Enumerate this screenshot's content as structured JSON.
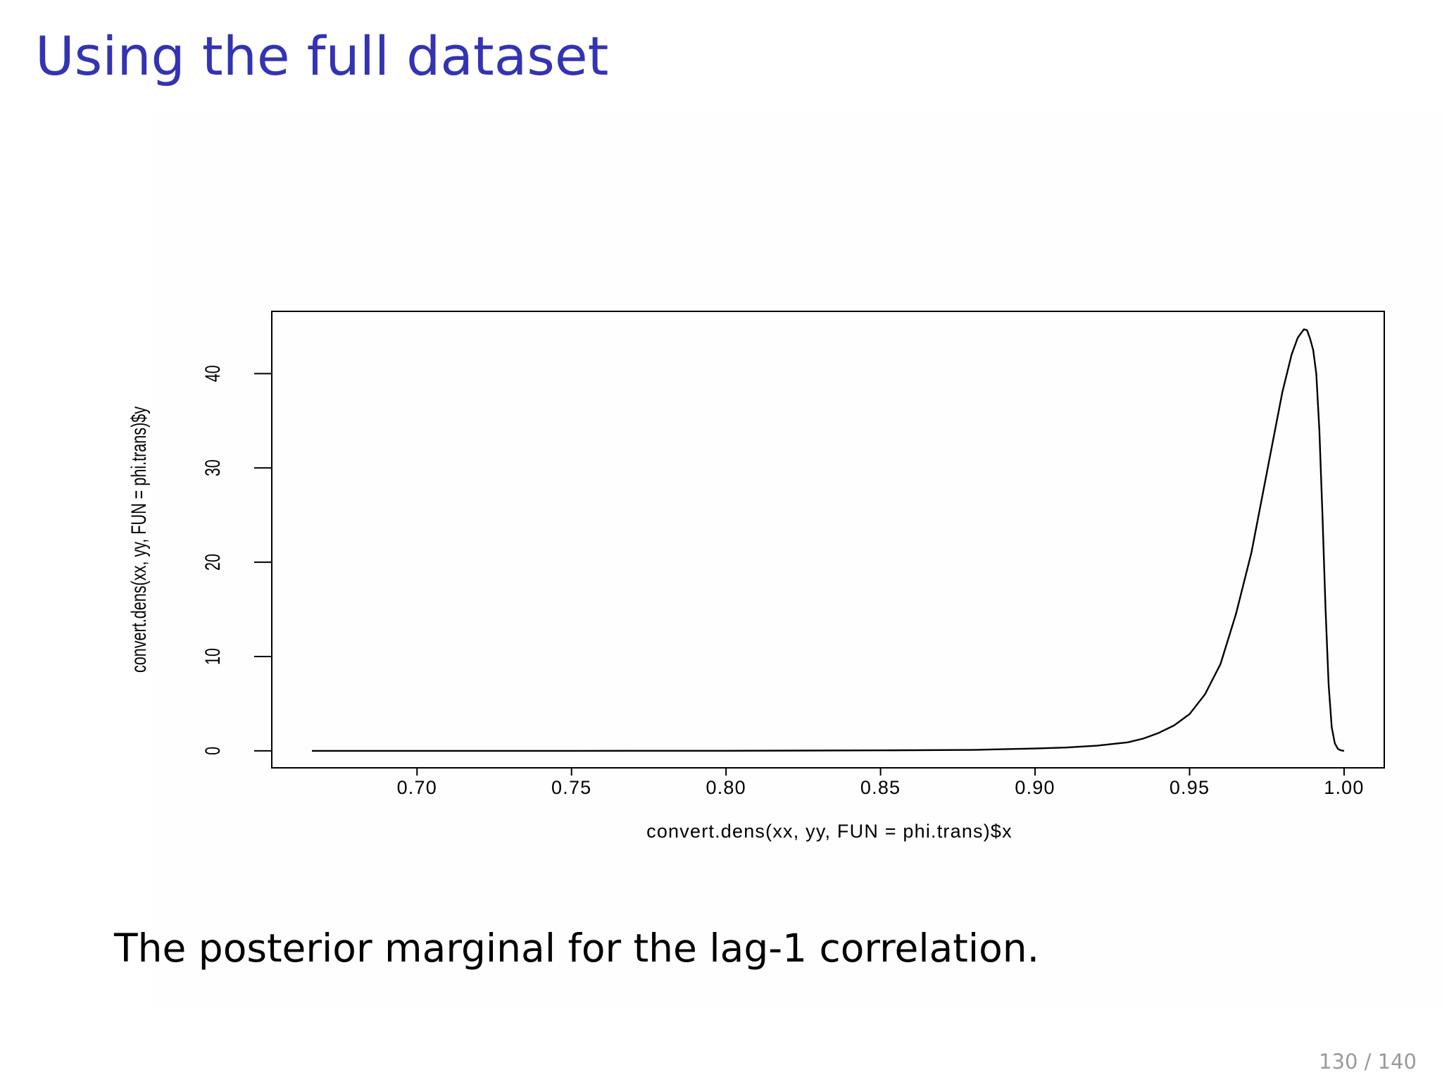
{
  "slide": {
    "title": "Using the full dataset",
    "caption": "The posterior marginal for the lag-1 correlation.",
    "page_number": "130 / 140"
  },
  "colors": {
    "title": "#3333b3",
    "curve": "#000000",
    "page_number": "#9a9a9a"
  },
  "chart_data": {
    "type": "line",
    "xlabel": "convert.dens(xx, yy, FUN = phi.trans)$x",
    "ylabel": "convert.dens(xx, yy, FUN = phi.trans)$y",
    "xlim": [
      0.653,
      1.013
    ],
    "ylim": [
      -1.8,
      46.6
    ],
    "x_ticks": [
      0.7,
      0.75,
      0.8,
      0.85,
      0.9,
      0.95,
      1.0
    ],
    "x_tick_labels": [
      "0.70",
      "0.75",
      "0.80",
      "0.85",
      "0.90",
      "0.95",
      "1.00"
    ],
    "y_ticks": [
      0,
      10,
      20,
      30,
      40
    ],
    "y_tick_labels": [
      "0",
      "10",
      "20",
      "30",
      "40"
    ],
    "grid": false,
    "series": [
      {
        "x": [
          0.666,
          0.7,
          0.75,
          0.8,
          0.85,
          0.88,
          0.9,
          0.91,
          0.92,
          0.93,
          0.935,
          0.94,
          0.945,
          0.95,
          0.955,
          0.96,
          0.965,
          0.97,
          0.975,
          0.98,
          0.983,
          0.985,
          0.987,
          0.988,
          0.989,
          0.99,
          0.991,
          0.992,
          0.993,
          0.994,
          0.995,
          0.996,
          0.997,
          0.998,
          0.999,
          1.0
        ],
        "y": [
          0,
          0,
          0,
          0.01,
          0.05,
          0.1,
          0.25,
          0.35,
          0.55,
          0.9,
          1.3,
          1.9,
          2.7,
          3.9,
          6.0,
          9.2,
          14.5,
          21.0,
          29.5,
          38.0,
          42.0,
          43.8,
          44.7,
          44.6,
          43.7,
          42.5,
          40.0,
          34.0,
          25.0,
          15.0,
          7.0,
          2.5,
          0.8,
          0.2,
          0.05,
          0
        ]
      }
    ]
  }
}
